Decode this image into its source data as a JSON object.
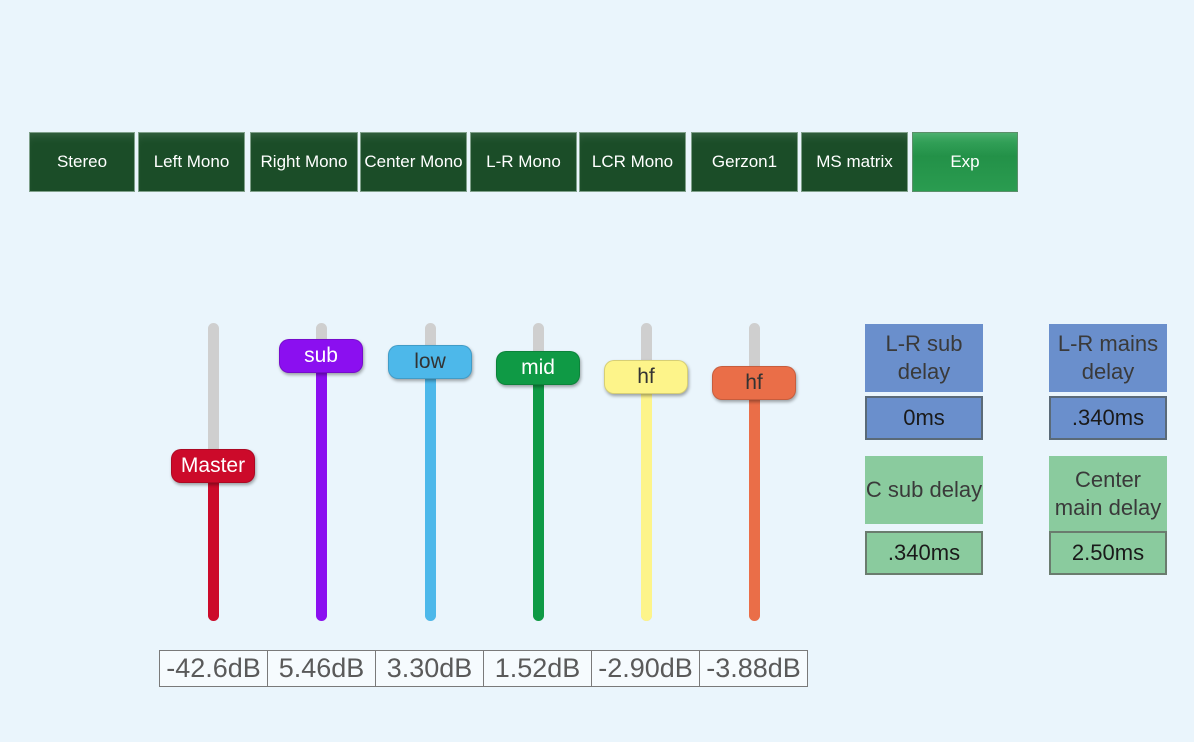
{
  "modes": [
    {
      "label": "Stereo",
      "active": false
    },
    {
      "label": "Left Mono",
      "active": false
    },
    {
      "label": "Right Mono",
      "active": false
    },
    {
      "label": "Center Mono",
      "active": false
    },
    {
      "label": "L-R Mono",
      "active": false
    },
    {
      "label": "LCR Mono",
      "active": false
    },
    {
      "label": "Gerzon1",
      "active": false
    },
    {
      "label": "MS matrix",
      "active": false
    },
    {
      "label": "Exp",
      "active": true
    }
  ],
  "faders": [
    {
      "label": "Master",
      "value": "-42.6dB",
      "level": 0.52,
      "color": "#cc0a2a",
      "text_color": "#ffffff"
    },
    {
      "label": "sub",
      "value": "5.46dB",
      "level": 0.89,
      "color": "#8b0ff0",
      "text_color": "#ffffff"
    },
    {
      "label": "low",
      "value": "3.30dB",
      "level": 0.87,
      "color": "#4db8ea",
      "text_color": "#333333"
    },
    {
      "label": "mid",
      "value": "1.52dB",
      "level": 0.85,
      "color": "#0f9a45",
      "text_color": "#ffffff"
    },
    {
      "label": "hf",
      "value": "-2.90dB",
      "level": 0.82,
      "color": "#fdf48a",
      "text_color": "#333333"
    },
    {
      "label": "hf",
      "value": "-3.88dB",
      "level": 0.8,
      "color": "#ea6e48",
      "text_color": "#333333"
    }
  ],
  "delays": {
    "lr_sub": {
      "label": "L-R sub delay",
      "value": "0ms"
    },
    "lr_mains": {
      "label": "L-R mains delay",
      "value": ".340ms"
    },
    "c_sub": {
      "label": "C sub delay",
      "value": ".340ms"
    },
    "center_main": {
      "label": "Center main delay",
      "value": "2.50ms"
    }
  },
  "colors": {
    "delay_blue": "#6a8fcc",
    "delay_green": "#8acb9e",
    "mode_button": "#1b4d28",
    "mode_active": "#2a9c50"
  }
}
